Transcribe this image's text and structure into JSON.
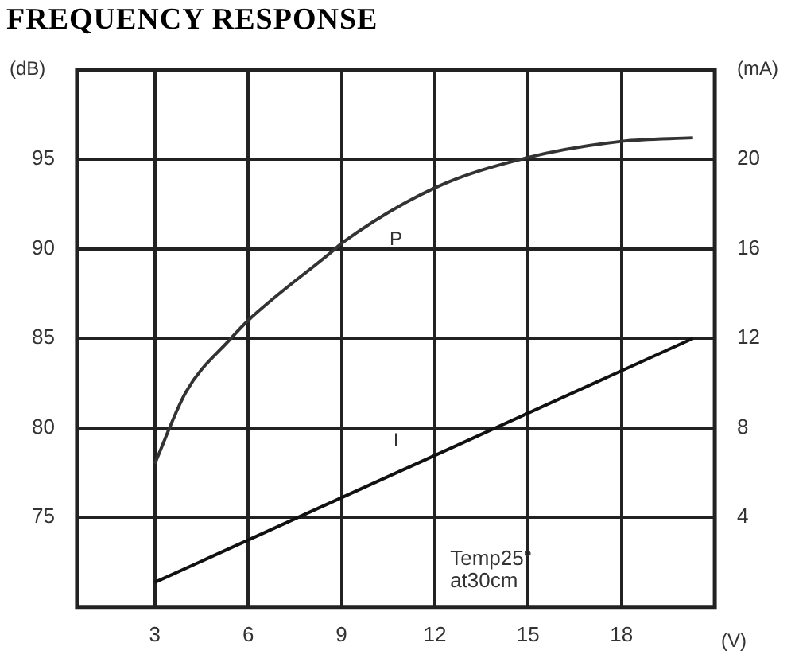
{
  "chart_data": {
    "type": "line",
    "title": "FREQUENCY RESPONSE",
    "xlabel": "(V)",
    "ylabel": "(dB)",
    "y2label": "(mA)",
    "xlim": [
      0.5,
      21
    ],
    "xticks": [
      3,
      6,
      9,
      12,
      15,
      18
    ],
    "ylim": [
      70,
      100
    ],
    "yticks": [
      75,
      80,
      85,
      90,
      95
    ],
    "y2lim": [
      0,
      24
    ],
    "y2ticks": [
      4,
      8,
      12,
      16,
      20
    ],
    "grid": true,
    "legend": false,
    "marker": "none",
    "line_style": "solid",
    "series": [
      {
        "name": "P",
        "color": "#333333",
        "x": [
          3,
          4,
          5.45,
          6,
          8.8,
          9,
          12,
          15,
          18,
          20.3
        ],
        "values": [
          78,
          82,
          85,
          86,
          90,
          90.3,
          93.4,
          95.1,
          96,
          96.2
        ]
      },
      {
        "name": "I",
        "color": "#111111",
        "axis": "y2",
        "x": [
          3,
          20.3
        ],
        "values": [
          1.1,
          12
        ]
      }
    ],
    "annotations": [
      "Temp25°\nat30cm"
    ]
  }
}
